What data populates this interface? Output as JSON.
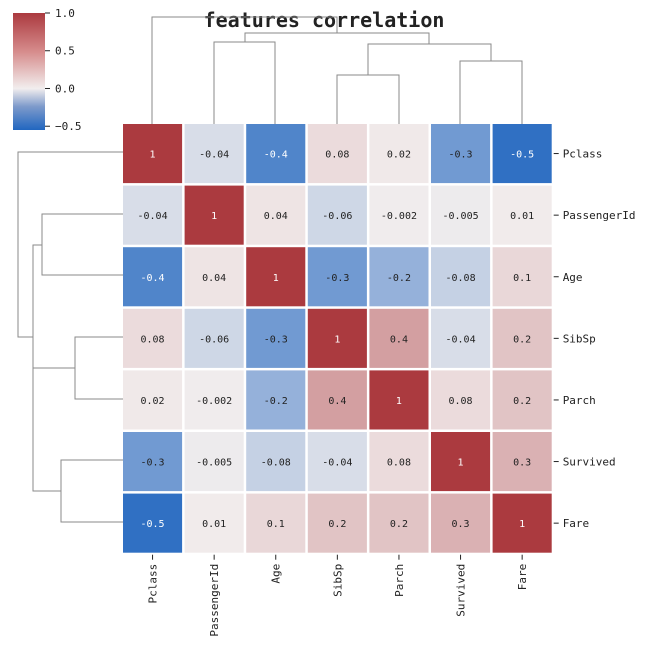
{
  "chart_data": {
    "type": "heatmap",
    "title": "features correlation",
    "variables": [
      "Pclass",
      "PassengerId",
      "Age",
      "SibSp",
      "Parch",
      "Survived",
      "Fare"
    ],
    "matrix": [
      [
        1,
        -0.04,
        -0.4,
        0.08,
        0.02,
        -0.3,
        -0.5
      ],
      [
        -0.04,
        1,
        0.04,
        -0.06,
        -0.002,
        -0.005,
        0.01
      ],
      [
        -0.4,
        0.04,
        1,
        -0.3,
        -0.2,
        -0.08,
        0.1
      ],
      [
        0.08,
        -0.06,
        -0.3,
        1,
        0.4,
        -0.04,
        0.2
      ],
      [
        0.02,
        -0.002,
        -0.2,
        0.4,
        1,
        0.08,
        0.2
      ],
      [
        -0.3,
        -0.005,
        -0.08,
        -0.04,
        0.08,
        1,
        0.3
      ],
      [
        -0.5,
        0.01,
        0.1,
        0.2,
        0.2,
        0.3,
        1
      ]
    ],
    "colorbar": {
      "ticks": [
        1.0,
        0.5,
        0.0,
        -0.5
      ],
      "tick_labels": [
        "1.0",
        "0.5",
        "0.0",
        "−0.5"
      ],
      "range": [
        -0.55,
        1.0
      ]
    },
    "colormap": {
      "low": "#2166c0",
      "mid": "#f2eeee",
      "high": "#ab3a3f"
    },
    "dendrogram": "row and column cluster trees shown",
    "grid": false
  }
}
